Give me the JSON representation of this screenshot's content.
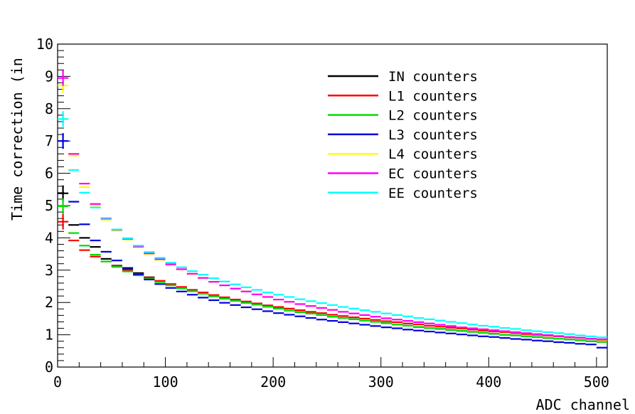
{
  "chart_data": {
    "type": "line",
    "title": "",
    "xlabel": "ADC channel",
    "ylabel": "Time correction (in",
    "xlim": [
      0,
      510
    ],
    "ylim": [
      0,
      10
    ],
    "x_ticks": [
      "0",
      "100",
      "200",
      "300",
      "400",
      "500"
    ],
    "y_ticks": [
      "0",
      "1",
      "2",
      "3",
      "4",
      "5",
      "6",
      "7",
      "8",
      "9",
      "10"
    ],
    "grid": false,
    "legend_position": "top-right",
    "x": [
      5,
      15,
      25,
      35,
      45,
      55,
      65,
      75,
      85,
      95,
      105,
      115,
      125,
      135,
      145,
      155,
      165,
      175,
      185,
      195,
      205,
      215,
      225,
      235,
      245,
      255,
      265,
      275,
      285,
      295,
      305,
      315,
      325,
      335,
      345,
      355,
      365,
      375,
      385,
      395,
      405,
      415,
      425,
      435,
      445,
      455,
      465,
      475,
      485,
      495,
      505
    ],
    "series": [
      {
        "name": "IN counters",
        "color": "#000000",
        "values": [
          5.38,
          4.4,
          4.0,
          3.72,
          3.35,
          3.14,
          3.03,
          2.91,
          2.78,
          2.66,
          2.55,
          2.44,
          2.35,
          2.27,
          2.19,
          2.12,
          2.05,
          1.99,
          1.93,
          1.87,
          1.81,
          1.75,
          1.7,
          1.66,
          1.61,
          1.56,
          1.52,
          1.48,
          1.44,
          1.4,
          1.36,
          1.32,
          1.28,
          1.24,
          1.21,
          1.18,
          1.15,
          1.12,
          1.09,
          1.06,
          1.03,
          1.0,
          0.98,
          0.95,
          0.93,
          0.9,
          0.88,
          0.85,
          0.83,
          0.8,
          0.78
        ]
      },
      {
        "name": "L1 counters",
        "color": "#ff0000",
        "values": [
          4.5,
          3.92,
          3.62,
          3.42,
          3.27,
          3.13,
          3.0,
          2.88,
          2.77,
          2.67,
          2.57,
          2.48,
          2.39,
          2.31,
          2.23,
          2.16,
          2.09,
          2.03,
          1.97,
          1.91,
          1.86,
          1.81,
          1.76,
          1.71,
          1.67,
          1.62,
          1.58,
          1.54,
          1.5,
          1.46,
          1.42,
          1.39,
          1.35,
          1.32,
          1.28,
          1.25,
          1.22,
          1.19,
          1.16,
          1.13,
          1.1,
          1.08,
          1.05,
          1.02,
          1.0,
          0.97,
          0.95,
          0.92,
          0.9,
          0.87,
          0.84
        ]
      },
      {
        "name": "L2 counters",
        "color": "#00dd00",
        "values": [
          4.98,
          4.15,
          3.76,
          3.48,
          3.27,
          3.1,
          2.96,
          2.84,
          2.73,
          2.63,
          2.53,
          2.44,
          2.35,
          2.27,
          2.19,
          2.12,
          2.05,
          1.99,
          1.93,
          1.87,
          1.81,
          1.75,
          1.7,
          1.66,
          1.61,
          1.56,
          1.52,
          1.48,
          1.44,
          1.4,
          1.36,
          1.32,
          1.28,
          1.24,
          1.21,
          1.18,
          1.15,
          1.12,
          1.09,
          1.06,
          1.03,
          1.0,
          0.98,
          0.95,
          0.93,
          0.9,
          0.88,
          0.85,
          0.83,
          0.8,
          0.78
        ]
      },
      {
        "name": "L3 counters",
        "color": "#0000dd",
        "values": [
          7.0,
          5.12,
          4.42,
          3.92,
          3.57,
          3.3,
          3.07,
          2.87,
          2.71,
          2.57,
          2.45,
          2.34,
          2.24,
          2.15,
          2.07,
          1.99,
          1.92,
          1.85,
          1.79,
          1.73,
          1.67,
          1.62,
          1.57,
          1.52,
          1.47,
          1.43,
          1.39,
          1.35,
          1.31,
          1.27,
          1.23,
          1.2,
          1.16,
          1.13,
          1.1,
          1.07,
          1.04,
          1.01,
          0.98,
          0.95,
          0.93,
          0.9,
          0.87,
          0.85,
          0.82,
          0.8,
          0.77,
          0.75,
          0.72,
          0.7,
          0.6
        ]
      },
      {
        "name": "L4 counters",
        "color": "#ffff00",
        "values": [
          8.72,
          6.55,
          5.57,
          5.0,
          4.56,
          4.22,
          3.95,
          3.71,
          3.5,
          3.32,
          3.16,
          3.02,
          2.88,
          2.76,
          2.64,
          2.53,
          2.43,
          2.34,
          2.25,
          2.17,
          2.09,
          2.02,
          1.95,
          1.89,
          1.83,
          1.77,
          1.71,
          1.66,
          1.61,
          1.56,
          1.51,
          1.47,
          1.43,
          1.39,
          1.35,
          1.31,
          1.27,
          1.23,
          1.2,
          1.17,
          1.14,
          1.11,
          1.08,
          1.05,
          1.02,
          0.99,
          0.96,
          0.93,
          0.91,
          0.88,
          0.85
        ]
      },
      {
        "name": "EC counters",
        "color": "#ff00ff",
        "values": [
          8.95,
          6.6,
          5.68,
          5.05,
          4.6,
          4.25,
          3.97,
          3.73,
          3.52,
          3.34,
          3.18,
          3.03,
          2.89,
          2.76,
          2.64,
          2.53,
          2.43,
          2.34,
          2.25,
          2.17,
          2.09,
          2.02,
          1.95,
          1.89,
          1.83,
          1.77,
          1.71,
          1.66,
          1.61,
          1.56,
          1.51,
          1.47,
          1.43,
          1.39,
          1.35,
          1.31,
          1.27,
          1.23,
          1.2,
          1.17,
          1.14,
          1.11,
          1.08,
          1.05,
          1.02,
          0.99,
          0.96,
          0.93,
          0.91,
          0.88,
          0.86
        ]
      },
      {
        "name": "EE counters",
        "color": "#00ffff",
        "values": [
          7.68,
          6.1,
          5.4,
          4.94,
          4.58,
          4.26,
          3.99,
          3.76,
          3.56,
          3.38,
          3.23,
          3.09,
          2.97,
          2.86,
          2.75,
          2.65,
          2.56,
          2.47,
          2.39,
          2.31,
          2.24,
          2.17,
          2.1,
          2.04,
          1.98,
          1.92,
          1.86,
          1.81,
          1.76,
          1.71,
          1.66,
          1.61,
          1.57,
          1.52,
          1.48,
          1.44,
          1.4,
          1.36,
          1.32,
          1.28,
          1.25,
          1.21,
          1.18,
          1.14,
          1.11,
          1.08,
          1.05,
          1.02,
          0.98,
          0.95,
          0.92
        ]
      }
    ]
  }
}
